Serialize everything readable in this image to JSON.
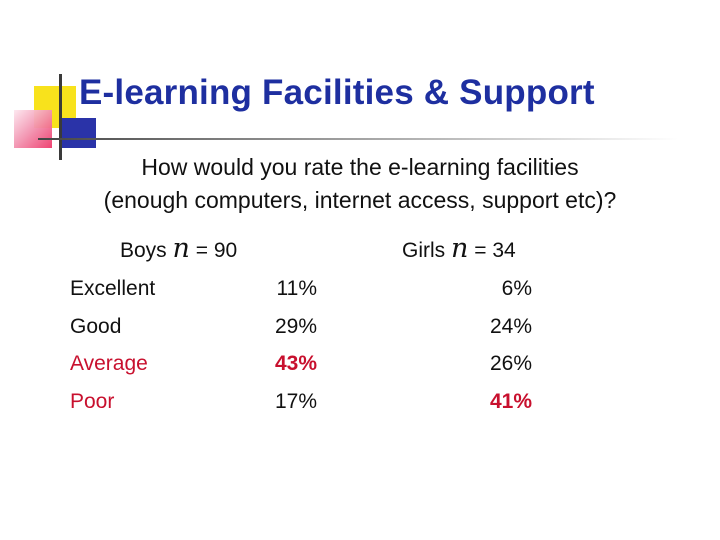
{
  "slide": {
    "title": "E-learning Facilities & Support",
    "question_line1": "How would you rate the e-learning facilities",
    "question_line2": "(enough computers, internet access, support etc)?"
  },
  "groups": {
    "boys": {
      "label": "Boys",
      "n_symbol": "n",
      "n_value": "= 90"
    },
    "girls": {
      "label": "Girls",
      "n_symbol": "n",
      "n_value": "= 34"
    }
  },
  "rows": [
    {
      "label": "Excellent",
      "boys": "11%",
      "girls": "6%"
    },
    {
      "label": "Good",
      "boys": "29%",
      "girls": "24%"
    },
    {
      "label": "Average",
      "boys": "43%",
      "girls": "26%"
    },
    {
      "label": "Poor",
      "boys": "17%",
      "girls": "41%"
    }
  ],
  "colors": {
    "title": "#1e2fa0",
    "highlight": "#c8102e",
    "text": "#111111"
  }
}
